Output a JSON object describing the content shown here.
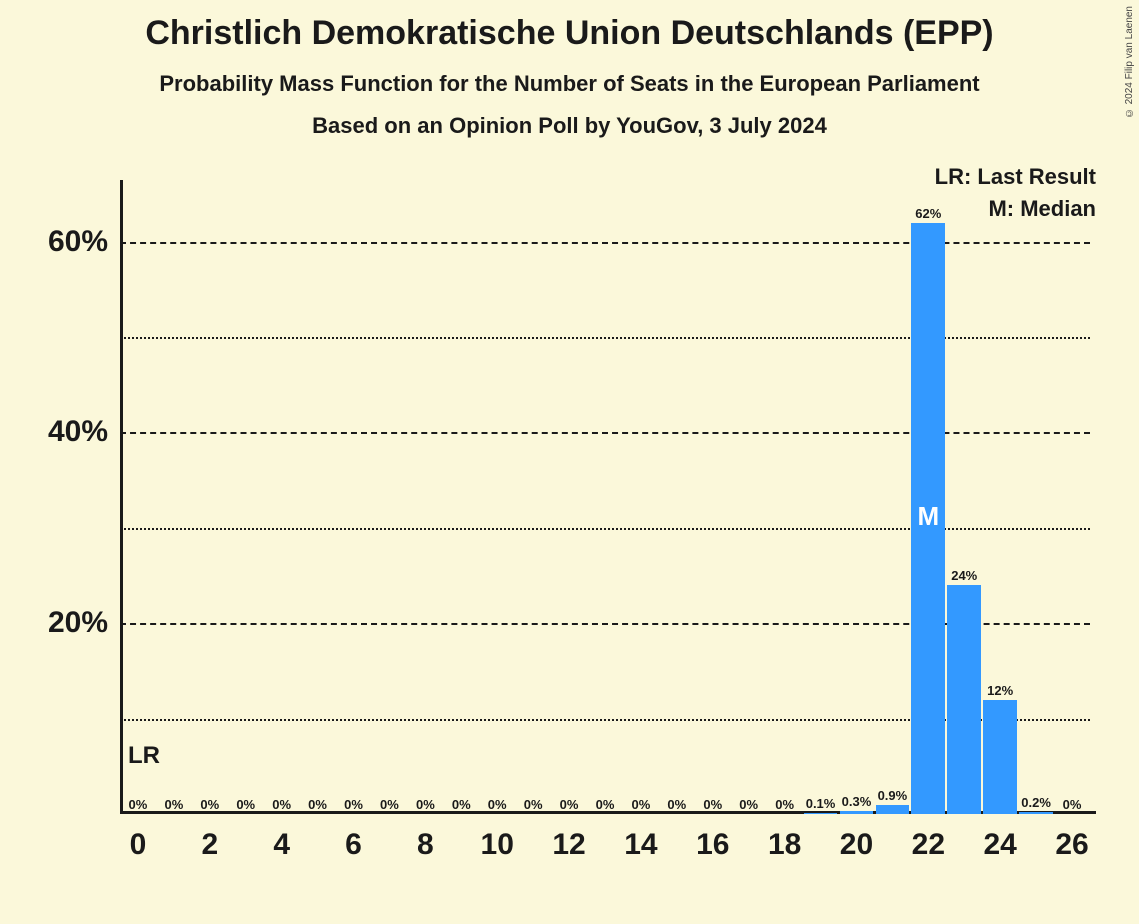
{
  "title": "Christlich Demokratische Union Deutschlands (EPP)",
  "subtitle1": "Probability Mass Function for the Number of Seats in the European Parliament",
  "subtitle2": "Based on an Opinion Poll by YouGov, 3 July 2024",
  "copyright": "© 2024 Filip van Laenen",
  "legend_lr": "LR: Last Result",
  "legend_m": "M: Median",
  "lr_marker": "LR",
  "median_marker": "M",
  "chart": {
    "type": "bar",
    "background_color": "#fbf8da",
    "bar_color": "#3399ff",
    "axis_color": "#1a1a1a",
    "grid_major_style": "dashed",
    "grid_minor_style": "dotted",
    "bar_width_ratio": 0.94,
    "ylim": [
      0,
      65
    ],
    "y_major_ticks": [
      20,
      40,
      60
    ],
    "y_minor_ticks": [
      10,
      30,
      50
    ],
    "y_tick_labels": {
      "20": "20%",
      "40": "40%",
      "60": "60%"
    },
    "x_range": [
      0,
      26
    ],
    "x_tick_step": 2,
    "title_fontsize": 34,
    "subtitle_fontsize": 22,
    "axis_label_fontsize": 30,
    "bar_label_fontsize": 13,
    "categories": [
      0,
      1,
      2,
      3,
      4,
      5,
      6,
      7,
      8,
      9,
      10,
      11,
      12,
      13,
      14,
      15,
      16,
      17,
      18,
      19,
      20,
      21,
      22,
      23,
      24,
      25,
      26
    ],
    "values": [
      0,
      0,
      0,
      0,
      0,
      0,
      0,
      0,
      0,
      0,
      0,
      0,
      0,
      0,
      0,
      0,
      0,
      0,
      0,
      0.1,
      0.3,
      0.9,
      62,
      24,
      12,
      0.2,
      0
    ],
    "value_labels": [
      "0%",
      "0%",
      "0%",
      "0%",
      "0%",
      "0%",
      "0%",
      "0%",
      "0%",
      "0%",
      "0%",
      "0%",
      "0%",
      "0%",
      "0%",
      "0%",
      "0%",
      "0%",
      "0%",
      "0.1%",
      "0.3%",
      "0.9%",
      "62%",
      "24%",
      "12%",
      "0.2%",
      "0%"
    ],
    "median_index": 22,
    "last_result_index": 0
  }
}
